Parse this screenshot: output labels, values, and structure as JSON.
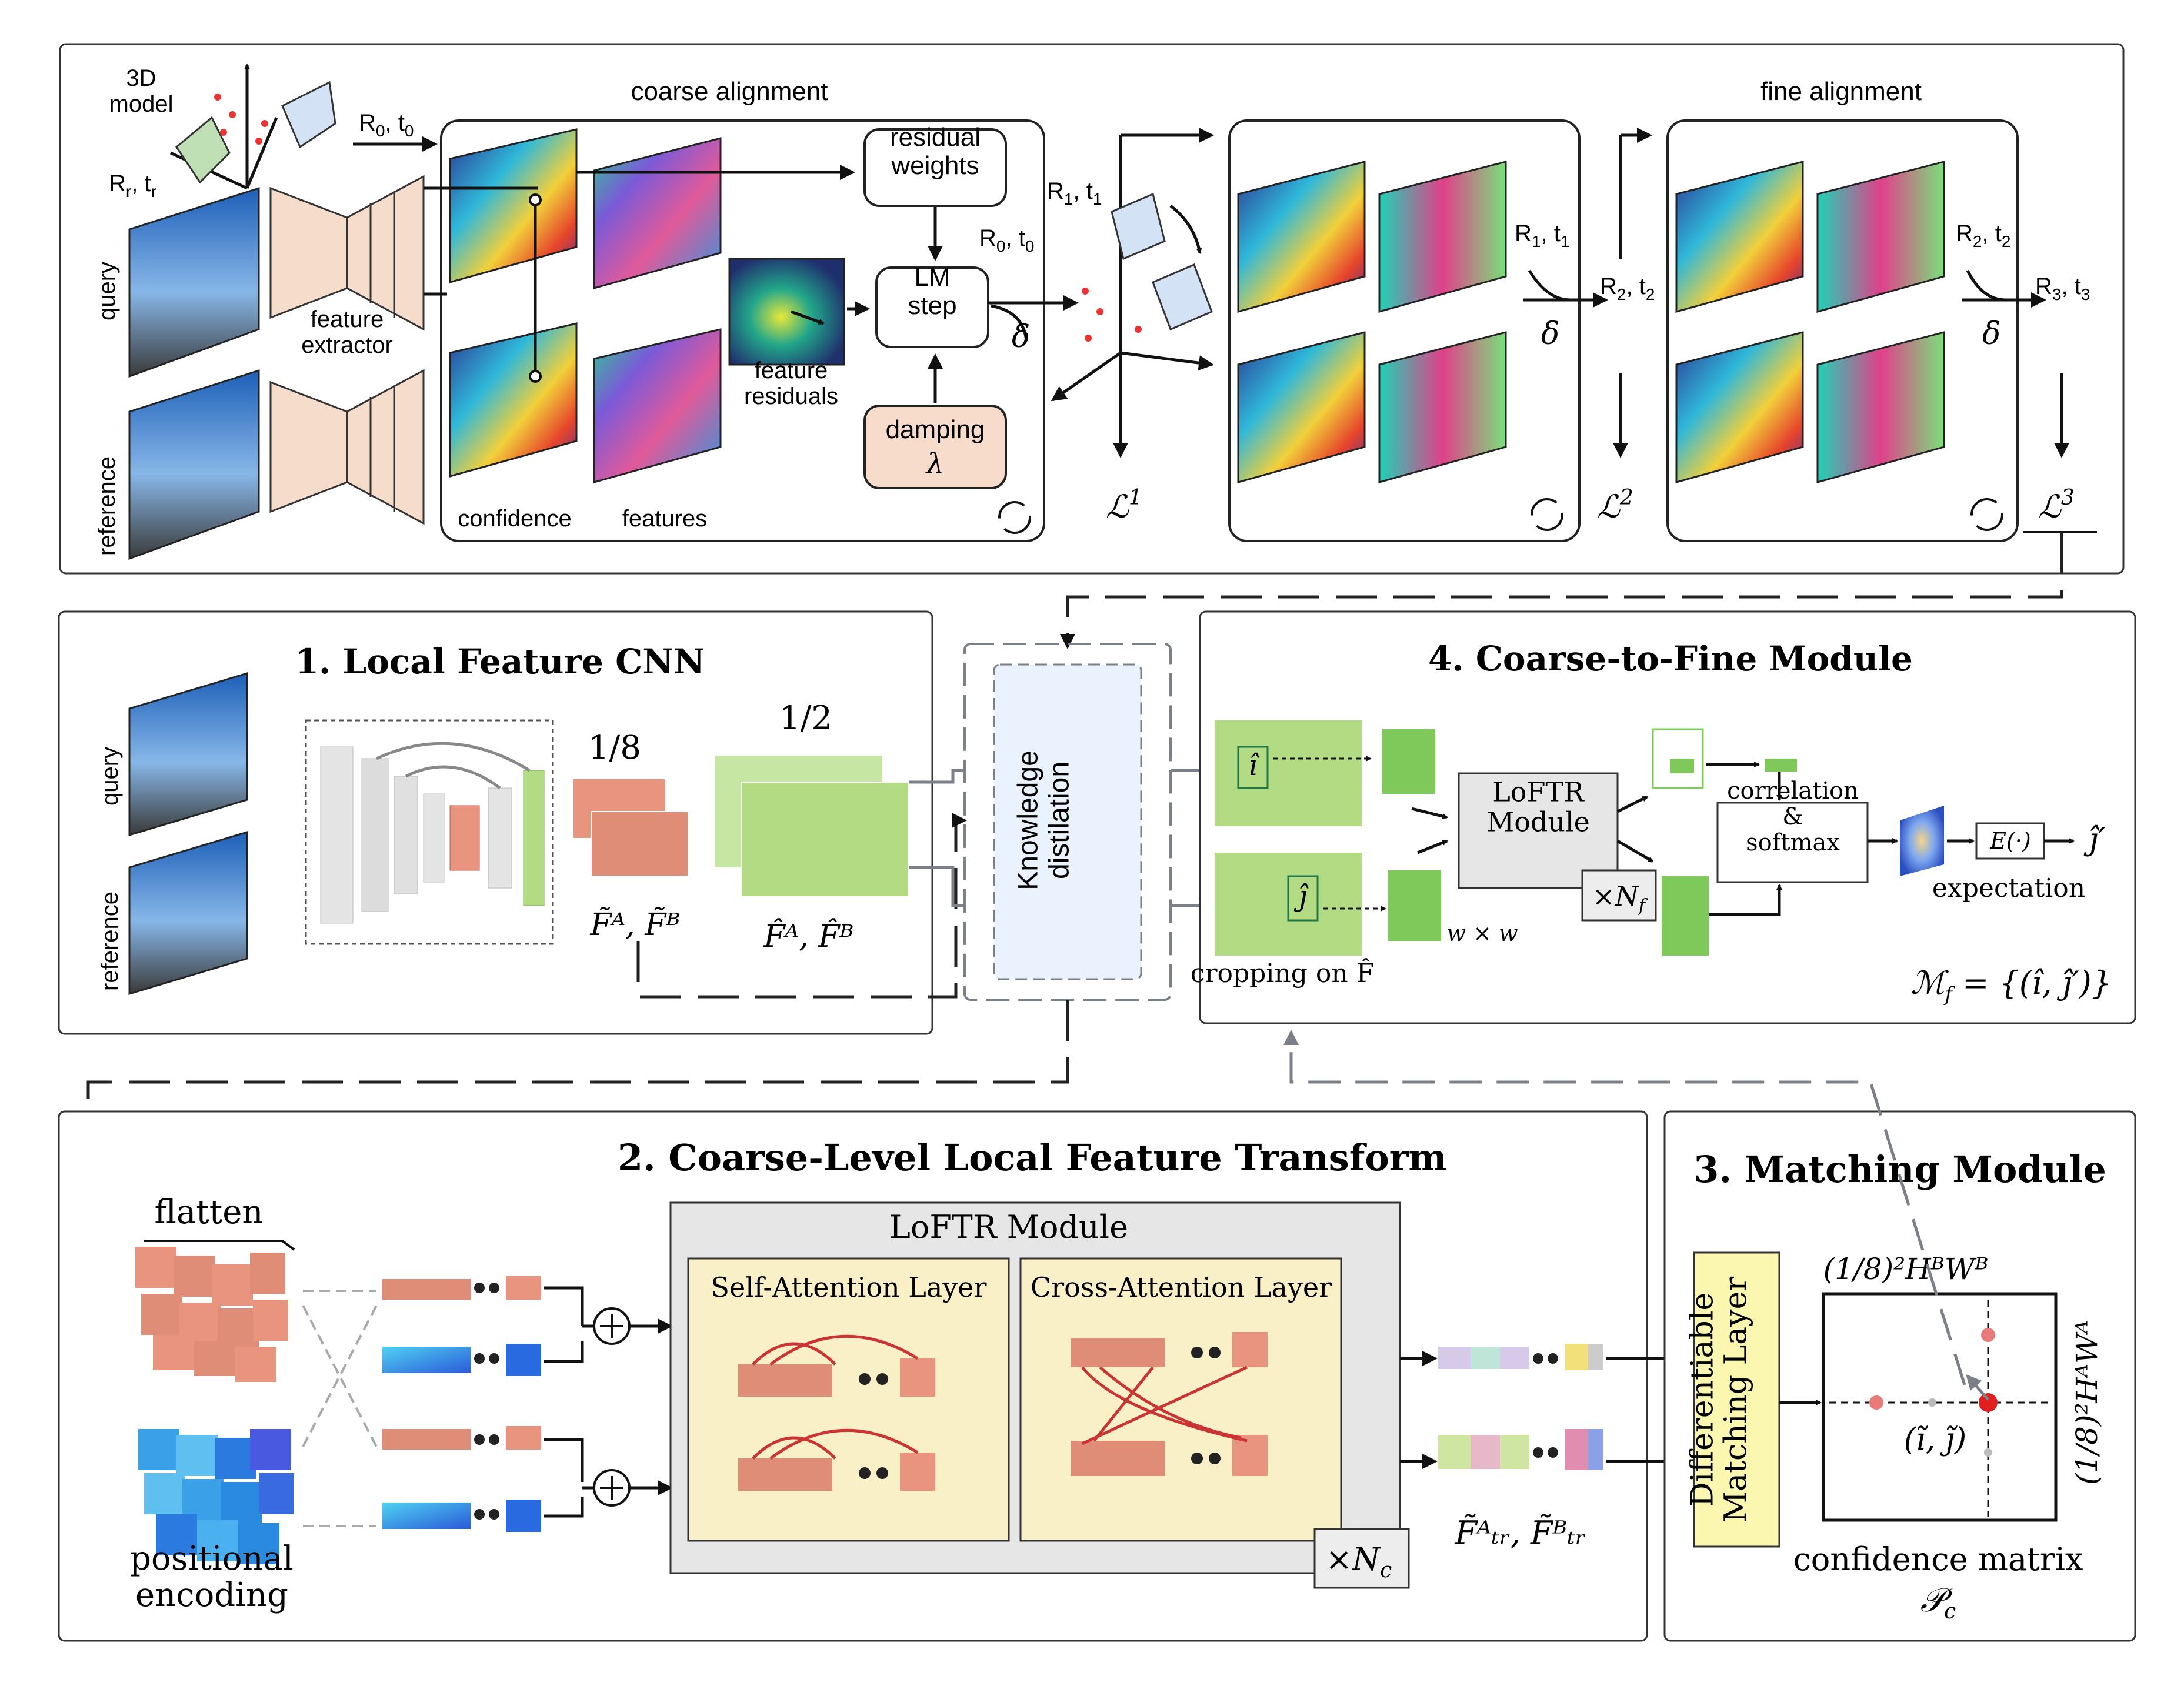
{
  "top": {
    "model_label": "3D\nmodel",
    "Rr_label": "R",
    "Rr_sub": "r",
    "tr_label": ", t",
    "tr_sub": "r",
    "query": "query",
    "reference": "reference",
    "feature_extractor": "feature\nextractor",
    "coarse_alignment": "coarse alignment",
    "fine_alignment": "fine alignment",
    "confidence": "confidence",
    "features": "features",
    "residual_weights": "residual\nweights",
    "lm_step": "LM\nstep",
    "feature_residuals": "feature\nresiduals",
    "damping": "damping",
    "lambda": "λ",
    "delta": "δ",
    "R0t0": "R",
    "R1t1": "R",
    "R2t2": "R",
    "R3t3": "R",
    "L1": "ℒ",
    "L2": "ℒ",
    "L3": "ℒ"
  },
  "panel1": {
    "title": "1. Local Feature CNN",
    "query": "query",
    "reference": "reference",
    "eighth": "1/8",
    "half": "1/2",
    "F_tilde": "F̃ᴬ, F̃ᴮ",
    "F_hat": "F̂ᴬ, F̂ᴮ"
  },
  "kd": {
    "label": "Knowledge\ndistilation"
  },
  "panel4": {
    "title": "4. Coarse-to-Fine Module",
    "i_hat": "î",
    "j_hat": "ĵ",
    "loftr": "LoFTR\nModule",
    "nf": "×N",
    "nf_sub": "f",
    "wxw": "w × w",
    "cropping": "cropping on F̂",
    "correlation": "correlation\n&\nsoftmax",
    "expectation": "expectation",
    "expect_fn": "E(·)",
    "j_prime": "ĵ′",
    "mf": "ℳ",
    "mf_rest": " = {(î, ĵ′)}"
  },
  "panel2": {
    "title": "2. Coarse-Level Local Feature Transform",
    "flatten": "flatten",
    "positional": "positional\nencoding",
    "loftr_module": "LoFTR Module",
    "self_attn": "Self-Attention Layer",
    "cross_attn": "Cross-Attention Layer",
    "nc": "×N",
    "nc_sub": "c",
    "F_tr": "F̃ᴬₜᵣ, F̃ᴮₜᵣ"
  },
  "panel3": {
    "title": "3. Matching Module",
    "dml": "Differentiable\nMatching Layer",
    "top_axis": "(1/8)²HᴮWᴮ",
    "side_axis": "(1/8)²HᴬWᴬ",
    "point": "(ĩ, j̃)",
    "confidence_matrix": "confidence matrix",
    "pc": "𝒫",
    "pc_sub": "c"
  },
  "colors": {
    "feature_extractor": "#f6dccb",
    "coarse_block": "#e9947f",
    "fine_block": "#b3db84",
    "matching_layer": "#fbf7b0",
    "attention_panel": "#f9f0c8",
    "loftr_module_bg": "#e6e6e6",
    "kd_box": "#eaf2fd",
    "damping_box": "#f7dccb"
  }
}
